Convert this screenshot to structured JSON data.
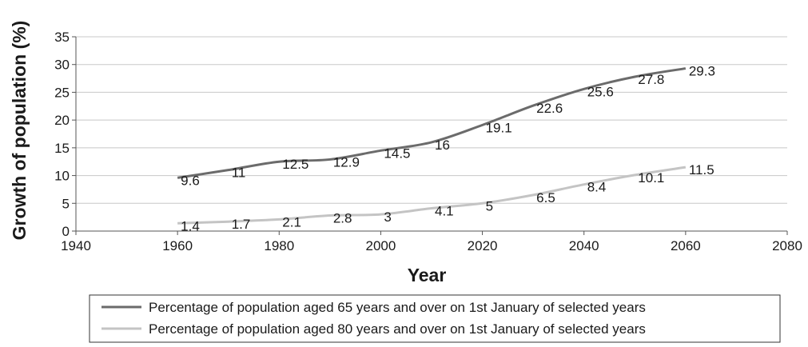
{
  "chart_data": {
    "type": "line",
    "xlabel": "Year",
    "ylabel": "Growth of population (%)",
    "xlim": [
      1940,
      2080
    ],
    "ylim": [
      0,
      35
    ],
    "xticks": [
      1940,
      1960,
      1980,
      2000,
      2020,
      2040,
      2060,
      2080
    ],
    "yticks": [
      0,
      5,
      10,
      15,
      20,
      25,
      30,
      35
    ],
    "grid": "horizontal",
    "legend_position": "bottom",
    "series": [
      {
        "name": "Percentage of population aged 65 years and over on 1st January of selected years",
        "color": "#6b6b6b",
        "x": [
          1960,
          1970,
          1980,
          1990,
          2000,
          2010,
          2020,
          2030,
          2040,
          2050,
          2060
        ],
        "values": [
          9.6,
          11,
          12.5,
          12.9,
          14.5,
          16,
          19.1,
          22.6,
          25.6,
          27.8,
          29.3
        ],
        "labels": [
          "9.6",
          "11",
          "12.5",
          "12.9",
          "14.5",
          "16",
          "19.1",
          "22.6",
          "25.6",
          "27.8",
          "29.3"
        ]
      },
      {
        "name": "Percentage of population aged 80 years and over on 1st January of selected years",
        "color": "#c4c4c4",
        "x": [
          1960,
          1970,
          1980,
          1990,
          2000,
          2010,
          2020,
          2030,
          2040,
          2050,
          2060
        ],
        "values": [
          1.4,
          1.7,
          2.1,
          2.8,
          3,
          4.1,
          5,
          6.5,
          8.4,
          10.1,
          11.5
        ],
        "labels": [
          "1.4",
          "1.7",
          "2.1",
          "2.8",
          "3",
          "4.1",
          "5",
          "6.5",
          "8.4",
          "10.1",
          "11.5"
        ]
      }
    ]
  }
}
